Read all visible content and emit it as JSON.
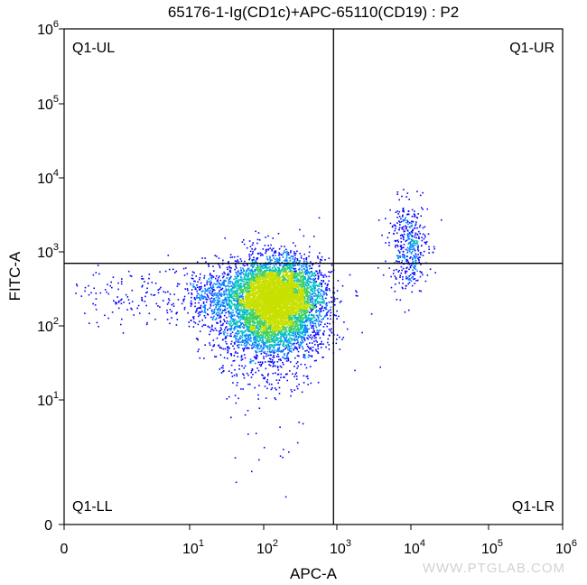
{
  "chart_data": {
    "type": "scatter",
    "title": "65176-1-Ig(CD1c)+APC-65110(CD19) : P2",
    "xlabel": "APC-A",
    "ylabel": "FITC-A",
    "xscale": "biexponential",
    "yscale": "biexponential",
    "xlim": [
      0,
      1000000
    ],
    "ylim": [
      0,
      1000000
    ],
    "x_ticks": [
      {
        "base": "0",
        "exp": ""
      },
      {
        "base": "10",
        "exp": "1"
      },
      {
        "base": "10",
        "exp": "2"
      },
      {
        "base": "10",
        "exp": "3"
      },
      {
        "base": "10",
        "exp": "4"
      },
      {
        "base": "10",
        "exp": "5"
      },
      {
        "base": "10",
        "exp": "6"
      }
    ],
    "y_ticks": [
      {
        "base": "0",
        "exp": ""
      },
      {
        "base": "10",
        "exp": "1"
      },
      {
        "base": "10",
        "exp": "2"
      },
      {
        "base": "10",
        "exp": "3"
      },
      {
        "base": "10",
        "exp": "4"
      },
      {
        "base": "10",
        "exp": "5"
      },
      {
        "base": "10",
        "exp": "6"
      }
    ],
    "gates": {
      "x_threshold": 900,
      "y_threshold": 700
    },
    "quadrants": [
      "Q1-UL",
      "Q1-UR",
      "Q1-LL",
      "Q1-LR"
    ],
    "populations": [
      {
        "center": [
          150,
          250
        ],
        "spread": [
          0.3,
          0.25
        ],
        "shape": "dense main cluster (CD19-negative)"
      },
      {
        "center": [
          120,
          80
        ],
        "spread": [
          0.35,
          0.45
        ],
        "shape": "downward tail"
      },
      {
        "center": [
          30,
          250
        ],
        "spread": [
          0.5,
          0.2
        ],
        "shape": "left shoulder"
      },
      {
        "center": [
          9000,
          1200
        ],
        "spread": [
          0.13,
          0.3
        ],
        "shape": "CD19+ CD1c+ cluster"
      }
    ],
    "density_colormap": [
      "#0000ff",
      "#0080ff",
      "#00c0c0",
      "#40d060",
      "#c8e000"
    ],
    "grid": false
  },
  "watermark": "WWW.PTGLAB.COM"
}
